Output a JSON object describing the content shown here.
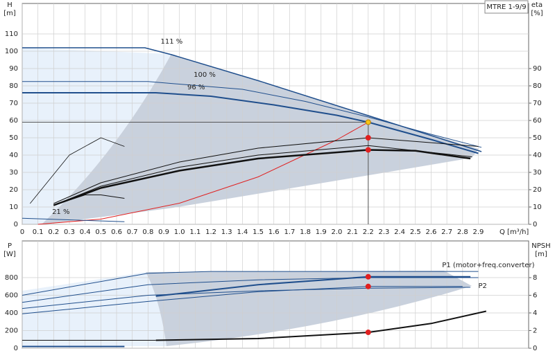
{
  "chart_data": [
    {
      "type": "line",
      "title": "MTRE 1-9/9",
      "y_label": "H",
      "y_unit": "[m]",
      "y2_label": "eta",
      "y2_unit": "[%]",
      "x_label": "Q [m³/h]",
      "xlim": [
        0,
        3.22
      ],
      "ylim": [
        0,
        127.6
      ],
      "y2lim": [
        0,
        127.6
      ],
      "grid": true,
      "xticks": [
        0,
        0.1,
        0.2,
        0.3,
        0.4,
        0.5,
        0.6,
        0.7,
        0.8,
        0.9,
        {
          "value": 1,
          "label": "1.0"
        },
        1.1,
        1.2,
        1.3,
        1.4,
        1.5,
        1.6,
        1.7,
        1.8,
        1.9,
        {
          "value": 2,
          "label": "2.0"
        },
        2.1,
        2.2,
        2.3,
        2.4,
        2.5,
        2.6,
        2.7,
        2.8,
        2.9
      ],
      "yticks": [
        0,
        10,
        20,
        30,
        40,
        50,
        60,
        70,
        80,
        90,
        100,
        110
      ],
      "y2ticks": [
        0,
        10,
        20,
        30,
        40,
        50,
        60,
        70,
        80,
        90
      ],
      "series": [
        {
          "x": [
            0,
            0.78,
            0.95,
            1.5,
            2.2,
            2.92
          ],
          "values": [
            102,
            102,
            98,
            83,
            62.8,
            42
          ],
          "color": "#1f4e8c",
          "width": 1.5
        },
        {
          "x": [
            0,
            0.8,
            1.4,
            1.8,
            2.2,
            2.6,
            2.92
          ],
          "values": [
            82.5,
            82.5,
            78,
            71,
            62,
            52,
            44.5
          ],
          "color": "#1f4e8c",
          "width": 1
        },
        {
          "x": [
            0,
            0.85,
            1.2,
            1.6,
            2.0,
            2.2,
            2.6,
            2.9
          ],
          "values": [
            76,
            76,
            74,
            69,
            63,
            59,
            49,
            41
          ],
          "color": "#1f4e8c",
          "width": 2
        },
        {
          "x": [
            0,
            2.2
          ],
          "values": [
            59,
            59
          ],
          "color": "#555555",
          "width": 1
        },
        {
          "x": [
            2.2,
            2.2
          ],
          "values": [
            59,
            0
          ],
          "color": "#555555",
          "width": 1
        },
        {
          "x": [
            0.1,
            0.5,
            1.0,
            1.5,
            2.0,
            2.2
          ],
          "values": [
            0,
            3,
            12.2,
            27.4,
            48.8,
            59
          ],
          "color": "#e02020",
          "width": 1
        },
        {
          "x": [
            0.2,
            0.5,
            1.0,
            1.5,
            2.2,
            2.9
          ],
          "values": [
            12,
            24,
            36,
            44,
            50,
            45
          ],
          "color": "#111111",
          "width": 1,
          "axis": "y2"
        },
        {
          "x": [
            0.2,
            0.5,
            1.0,
            1.5,
            2.2,
            2.86
          ],
          "values": [
            11,
            22,
            33,
            40,
            45.5,
            39
          ],
          "color": "#111111",
          "width": 1,
          "axis": "y2"
        },
        {
          "x": [
            0.2,
            0.5,
            1.0,
            1.5,
            2.2,
            2.5,
            2.85
          ],
          "values": [
            11,
            21,
            31,
            38,
            43,
            42.5,
            38
          ],
          "color": "#111111",
          "width": 2.5,
          "axis": "y2"
        },
        {
          "x": [
            0.05,
            0.3,
            0.5,
            0.65
          ],
          "values": [
            12,
            40,
            50,
            45
          ],
          "color": "#111111",
          "width": 0.8,
          "axis": "y2"
        },
        {
          "x": [
            0.2,
            0.4,
            0.5,
            0.65
          ],
          "values": [
            11,
            17,
            17,
            15
          ],
          "color": "#111111",
          "width": 1,
          "axis": "y2"
        },
        {
          "x": [
            0,
            0.65
          ],
          "values": [
            3.5,
            1.5
          ],
          "color": "#1f4e8c",
          "width": 1
        },
        {
          "x": [
            2.2
          ],
          "values": [
            59
          ],
          "color": "#f5c518",
          "mode": "points"
        },
        {
          "x": [
            2.2,
            2.2
          ],
          "values": [
            50,
            43
          ],
          "color": "#e02020",
          "mode": "points",
          "axis": "y2"
        }
      ],
      "annotations": [
        {
          "text": "111 %",
          "x": 0.88,
          "y": 105.6
        },
        {
          "text": "100 %",
          "x": 1.09,
          "y": 86.4
        },
        {
          "text": "96 %",
          "x": 1.05,
          "y": 79.2
        },
        {
          "text": "21 %",
          "x": 0.19,
          "y": 7.2
        }
      ]
    },
    {
      "type": "line",
      "y_label": "P",
      "y_unit": "[W]",
      "y2_label": "NPSH",
      "y2_unit": "[m]",
      "xlim": [
        0,
        3.22
      ],
      "ylim": [
        0,
        1216
      ],
      "y2lim": [
        0,
        12.16
      ],
      "grid": true,
      "yticks": [
        0,
        200,
        400,
        600,
        800
      ],
      "y2ticks": [
        0,
        2,
        4,
        6,
        8
      ],
      "series": [
        {
          "x": [
            0,
            0.8,
            1.2,
            2.9
          ],
          "values": [
            600,
            850,
            870,
            870
          ],
          "color": "#1f4e8c",
          "width": 1
        },
        {
          "x": [
            0,
            0.8,
            1.5,
            2.2,
            2.9
          ],
          "values": [
            520,
            720,
            775,
            800,
            800
          ],
          "color": "#1f4e8c",
          "width": 1
        },
        {
          "x": [
            0.85,
            1.5,
            2.2,
            2.85
          ],
          "values": [
            590,
            720,
            810,
            810
          ],
          "color": "#1f4e8c",
          "width": 2
        },
        {
          "x": [
            0,
            0.8,
            1.5,
            2.2,
            2.85
          ],
          "values": [
            450,
            600,
            650,
            680,
            690
          ],
          "color": "#1f4e8c",
          "width": 1
        },
        {
          "x": [
            0,
            0.8,
            1.5,
            2.2,
            2.8
          ],
          "values": [
            390,
            530,
            640,
            700,
            700
          ],
          "color": "#1f4e8c",
          "width": 1
        },
        {
          "x": [
            0,
            0.65
          ],
          "values": [
            20,
            20
          ],
          "color": "#1f4e8c",
          "width": 2
        },
        {
          "x": [
            0,
            0.85
          ],
          "values": [
            0.9,
            0.9
          ],
          "color": "#111111",
          "width": 1,
          "axis": "y2"
        },
        {
          "x": [
            0.85,
            1.5,
            2.2,
            2.6,
            2.95
          ],
          "values": [
            0.9,
            1.1,
            1.8,
            2.8,
            4.2
          ],
          "color": "#111111",
          "width": 2,
          "axis": "y2"
        },
        {
          "x": [
            2.2,
            2.2
          ],
          "values": [
            810,
            700
          ],
          "color": "#e02020",
          "mode": "points"
        },
        {
          "x": [
            2.2
          ],
          "values": [
            1.8
          ],
          "color": "#e02020",
          "mode": "points",
          "axis": "y2"
        }
      ],
      "annotations": [
        {
          "text": "P1 (motor+freq.converter)",
          "x": 2.67,
          "y": 941
        },
        {
          "text": "P2",
          "x": 2.9,
          "y": 706
        }
      ]
    }
  ]
}
